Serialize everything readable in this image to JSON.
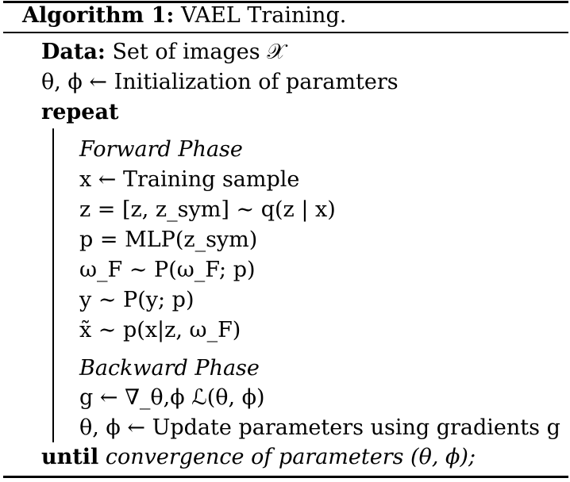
{
  "caption": {
    "label": "Algorithm 1:",
    "title": "VAEL Training."
  },
  "data_line": {
    "keyword": "Data:",
    "text": "Set of images 𝒳"
  },
  "init_line": "θ, ϕ ← Initialization of paramters",
  "repeat_keyword": "repeat",
  "forward_phase": "Forward Phase",
  "forward_lines": [
    "x ← Training sample",
    "z = [z, z_sym] ∼ q(z | x)",
    "p = MLP(z_sym)",
    "ω_F ∼ P(ω_F; p)",
    "y ∼ P(y; p)",
    "x̃ ∼ p(x|z, ω_F)"
  ],
  "backward_phase": "Backward Phase",
  "backward_lines": [
    "g ← ∇_θ,ϕ ℒ(θ, ϕ)",
    "θ, ϕ ← Update parameters using gradients g"
  ],
  "until_line": {
    "keyword": "until",
    "text": "convergence of parameters (θ, ϕ);"
  }
}
